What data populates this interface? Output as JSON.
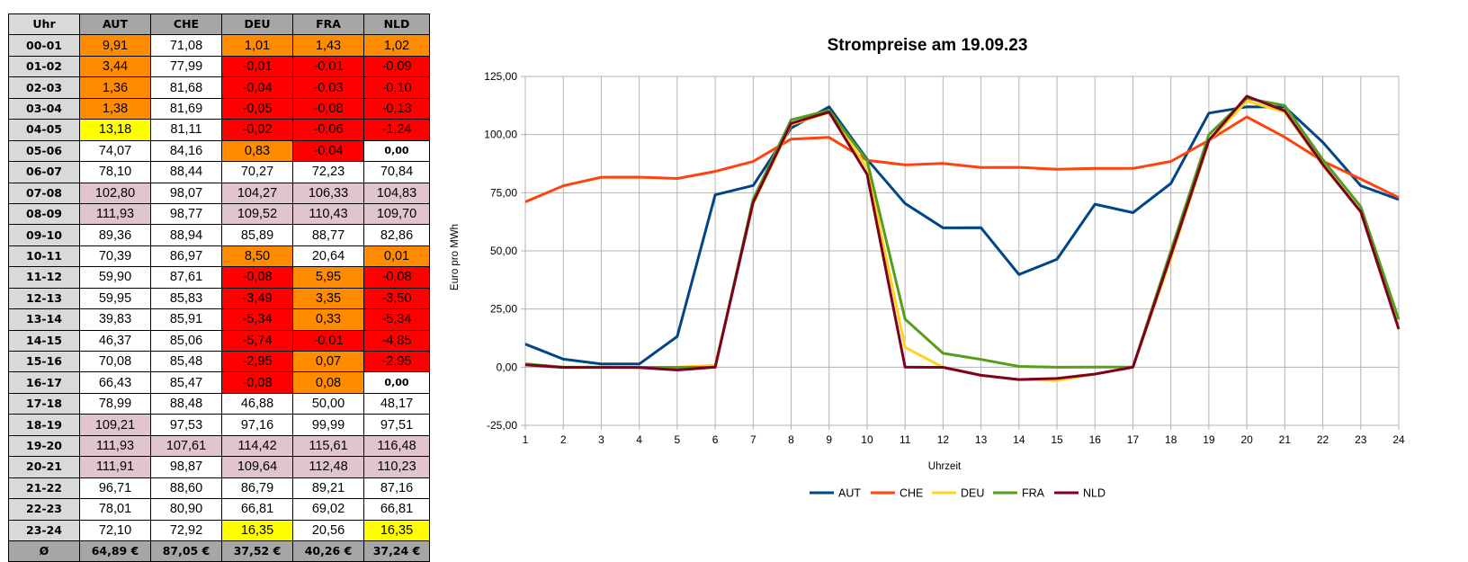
{
  "table": {
    "headers": [
      "Uhr",
      "AUT",
      "CHE",
      "DEU",
      "FRA",
      "NLD"
    ],
    "rows": [
      [
        "00-01",
        "9,91",
        "71,08",
        "1,01",
        "1,43",
        "1,02"
      ],
      [
        "01-02",
        "3,44",
        "77,99",
        "-0,01",
        "-0,01",
        "-0,09"
      ],
      [
        "02-03",
        "1,36",
        "81,68",
        "-0,04",
        "-0,03",
        "-0,10"
      ],
      [
        "03-04",
        "1,38",
        "81,69",
        "-0,05",
        "-0,08",
        "-0,13"
      ],
      [
        "04-05",
        "13,18",
        "81,11",
        "-0,02",
        "-0,06",
        "-1,24"
      ],
      [
        "05-06",
        "74,07",
        "84,16",
        "0,83",
        "-0,04",
        "0,00"
      ],
      [
        "06-07",
        "78,10",
        "88,44",
        "70,27",
        "72,23",
        "70,84"
      ],
      [
        "07-08",
        "102,80",
        "98,07",
        "104,27",
        "106,33",
        "104,83"
      ],
      [
        "08-09",
        "111,93",
        "98,77",
        "109,52",
        "110,43",
        "109,70"
      ],
      [
        "09-10",
        "89,36",
        "88,94",
        "85,89",
        "88,77",
        "82,86"
      ],
      [
        "10-11",
        "70,39",
        "86,97",
        "8,50",
        "20,64",
        "0,01"
      ],
      [
        "11-12",
        "59,90",
        "87,61",
        "-0,08",
        "5,95",
        "-0,08"
      ],
      [
        "12-13",
        "59,95",
        "85,83",
        "-3,49",
        "3,35",
        "-3,50"
      ],
      [
        "13-14",
        "39,83",
        "85,91",
        "-5,34",
        "0,33",
        "-5,34"
      ],
      [
        "14-15",
        "46,37",
        "85,06",
        "-5,74",
        "-0,01",
        "-4,85"
      ],
      [
        "15-16",
        "70,08",
        "85,48",
        "-2,95",
        "0,07",
        "-2,95"
      ],
      [
        "16-17",
        "66,43",
        "85,47",
        "-0,08",
        "0,08",
        "0,00"
      ],
      [
        "17-18",
        "78,99",
        "88,48",
        "46,88",
        "50,00",
        "48,17"
      ],
      [
        "18-19",
        "109,21",
        "97,53",
        "97,16",
        "99,99",
        "97,51"
      ],
      [
        "19-20",
        "111,93",
        "107,61",
        "114,42",
        "115,61",
        "116,48"
      ],
      [
        "20-21",
        "111,91",
        "98,87",
        "109,64",
        "112,48",
        "110,23"
      ],
      [
        "21-22",
        "96,71",
        "88,60",
        "86,79",
        "89,21",
        "87,16"
      ],
      [
        "22-23",
        "78,01",
        "80,90",
        "66,81",
        "69,02",
        "66,81"
      ],
      [
        "23-24",
        "72,10",
        "72,92",
        "16,35",
        "20,56",
        "16,35"
      ]
    ],
    "cell_colors": [
      [
        "o",
        "w",
        "o",
        "o",
        "o"
      ],
      [
        "o",
        "w",
        "r",
        "r",
        "r"
      ],
      [
        "o",
        "w",
        "r",
        "r",
        "r"
      ],
      [
        "o",
        "w",
        "r",
        "r",
        "r"
      ],
      [
        "y",
        "w",
        "r",
        "r",
        "r"
      ],
      [
        "w",
        "w",
        "o",
        "r",
        "w"
      ],
      [
        "w",
        "w",
        "w",
        "w",
        "w"
      ],
      [
        "p",
        "w",
        "p",
        "p",
        "p"
      ],
      [
        "p",
        "w",
        "p",
        "p",
        "p"
      ],
      [
        "w",
        "w",
        "w",
        "w",
        "w"
      ],
      [
        "w",
        "w",
        "o",
        "w",
        "o"
      ],
      [
        "w",
        "w",
        "r",
        "o",
        "r"
      ],
      [
        "w",
        "w",
        "r",
        "o",
        "r"
      ],
      [
        "w",
        "w",
        "r",
        "o",
        "r"
      ],
      [
        "w",
        "w",
        "r",
        "r",
        "r"
      ],
      [
        "w",
        "w",
        "r",
        "o",
        "r"
      ],
      [
        "w",
        "w",
        "r",
        "o",
        "w"
      ],
      [
        "w",
        "w",
        "w",
        "w",
        "w"
      ],
      [
        "p",
        "w",
        "w",
        "w",
        "w"
      ],
      [
        "p",
        "p",
        "p",
        "p",
        "p"
      ],
      [
        "p",
        "w",
        "p",
        "p",
        "p"
      ],
      [
        "w",
        "w",
        "w",
        "w",
        "w"
      ],
      [
        "w",
        "w",
        "w",
        "w",
        "w"
      ],
      [
        "w",
        "w",
        "y",
        "w",
        "y"
      ]
    ],
    "palette": {
      "o": "#ff8c00",
      "r": "#ff0000",
      "y": "#ffff00",
      "p": "#e0c4d0",
      "w": "#ffffff"
    },
    "average_row": [
      "Ø",
      "64,89 €",
      "87,05 €",
      "37,52 €",
      "40,26 €",
      "37,24 €"
    ]
  },
  "chart_data": {
    "type": "line",
    "title": "Strompreise am 19.09.23",
    "xlabel": "Uhrzeit",
    "ylabel": "Euro pro MWh",
    "x": [
      1,
      2,
      3,
      4,
      5,
      6,
      7,
      8,
      9,
      10,
      11,
      12,
      13,
      14,
      15,
      16,
      17,
      18,
      19,
      20,
      21,
      22,
      23,
      24
    ],
    "ylim": [
      -25,
      125
    ],
    "yticks": [
      -25,
      0,
      25,
      50,
      75,
      100,
      125
    ],
    "ytick_labels": [
      "-25,00",
      "0,00",
      "25,00",
      "50,00",
      "75,00",
      "100,00",
      "125,00"
    ],
    "grid": true,
    "legend_position": "bottom",
    "series": [
      {
        "name": "AUT",
        "color": "#004586",
        "values": [
          9.91,
          3.44,
          1.36,
          1.38,
          13.18,
          74.07,
          78.1,
          102.8,
          111.93,
          89.36,
          70.39,
          59.9,
          59.95,
          39.83,
          46.37,
          70.08,
          66.43,
          78.99,
          109.21,
          111.93,
          111.91,
          96.71,
          78.01,
          72.1
        ]
      },
      {
        "name": "CHE",
        "color": "#ff420e",
        "values": [
          71.08,
          77.99,
          81.68,
          81.69,
          81.11,
          84.16,
          88.44,
          98.07,
          98.77,
          88.94,
          86.97,
          87.61,
          85.83,
          85.91,
          85.06,
          85.48,
          85.47,
          88.48,
          97.53,
          107.61,
          98.87,
          88.6,
          80.9,
          72.92
        ]
      },
      {
        "name": "DEU",
        "color": "#ffd320",
        "values": [
          1.01,
          -0.01,
          -0.04,
          -0.05,
          -0.02,
          0.83,
          70.27,
          104.27,
          109.52,
          85.89,
          8.5,
          -0.08,
          -3.49,
          -5.34,
          -5.74,
          -2.95,
          -0.08,
          46.88,
          97.16,
          114.42,
          109.64,
          86.79,
          66.81,
          16.35
        ]
      },
      {
        "name": "FRA",
        "color": "#579d1c",
        "values": [
          1.43,
          -0.01,
          -0.03,
          -0.08,
          -0.06,
          -0.04,
          72.23,
          106.33,
          110.43,
          88.77,
          20.64,
          5.95,
          3.35,
          0.33,
          -0.01,
          0.07,
          0.08,
          50.0,
          99.99,
          115.61,
          112.48,
          89.21,
          69.02,
          20.56
        ]
      },
      {
        "name": "NLD",
        "color": "#7e0021",
        "values": [
          1.02,
          -0.09,
          -0.1,
          -0.13,
          -1.24,
          0.0,
          70.84,
          104.83,
          109.7,
          82.86,
          0.01,
          -0.08,
          -3.5,
          -5.34,
          -4.85,
          -2.95,
          0.0,
          48.17,
          97.51,
          116.48,
          110.23,
          87.16,
          66.81,
          16.35
        ]
      }
    ]
  }
}
